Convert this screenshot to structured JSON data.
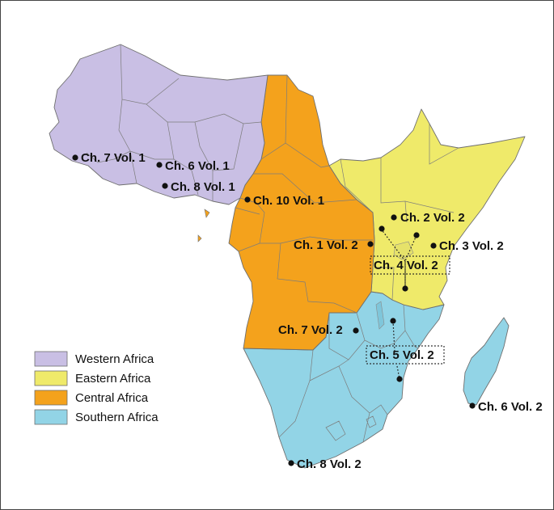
{
  "colors": {
    "western": "#c9bfe4",
    "eastern": "#efea6a",
    "central": "#f4a21c",
    "southern": "#92d4e6"
  },
  "legend": {
    "items": [
      {
        "label": "Western Africa",
        "color": "#c9bfe4"
      },
      {
        "label": "Eastern Africa",
        "color": "#efea6a"
      },
      {
        "label": "Central Africa",
        "color": "#f4a21c"
      },
      {
        "label": "Southern Africa",
        "color": "#92d4e6"
      }
    ]
  },
  "markers": {
    "w_ch7v1": "Ch. 7 Vol. 1",
    "w_ch6v1": "Ch. 6 Vol. 1",
    "w_ch8v1": "Ch. 8 Vol. 1",
    "c_ch10v1": "Ch. 10 Vol. 1",
    "e_ch2v2": "Ch. 2 Vol. 2",
    "c_ch1v2": "Ch. 1 Vol. 2",
    "e_ch3v2": "Ch. 3 Vol. 2",
    "e_ch4v2": "Ch. 4 Vol. 2",
    "s_ch7v2": "Ch. 7 Vol. 2",
    "s_ch5v2": "Ch. 5 Vol. 2",
    "s_ch6v2": "Ch. 6 Vol. 2",
    "s_ch8v2": "Ch. 8 Vol. 2"
  }
}
